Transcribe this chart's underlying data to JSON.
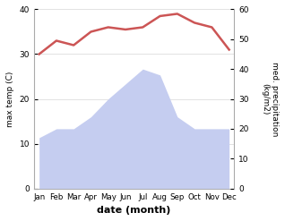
{
  "months": [
    "Jan",
    "Feb",
    "Mar",
    "Apr",
    "May",
    "Jun",
    "Jul",
    "Aug",
    "Sep",
    "Oct",
    "Nov",
    "Dec"
  ],
  "temperature": [
    30,
    33,
    32,
    35,
    36,
    35.5,
    36,
    38.5,
    39,
    37,
    36,
    31
  ],
  "precipitation": [
    17,
    20,
    20,
    24,
    30,
    35,
    40,
    38,
    24,
    20,
    20,
    20
  ],
  "temp_color": "#cc5555",
  "precip_color": "#c5cdf0",
  "temp_ylim": [
    0,
    40
  ],
  "precip_ylim": [
    0,
    60
  ],
  "ylabel_left": "max temp (C)",
  "ylabel_right": "med. precipitation\n(kg/m2)",
  "xlabel": "date (month)",
  "bg_color": "#ffffff"
}
